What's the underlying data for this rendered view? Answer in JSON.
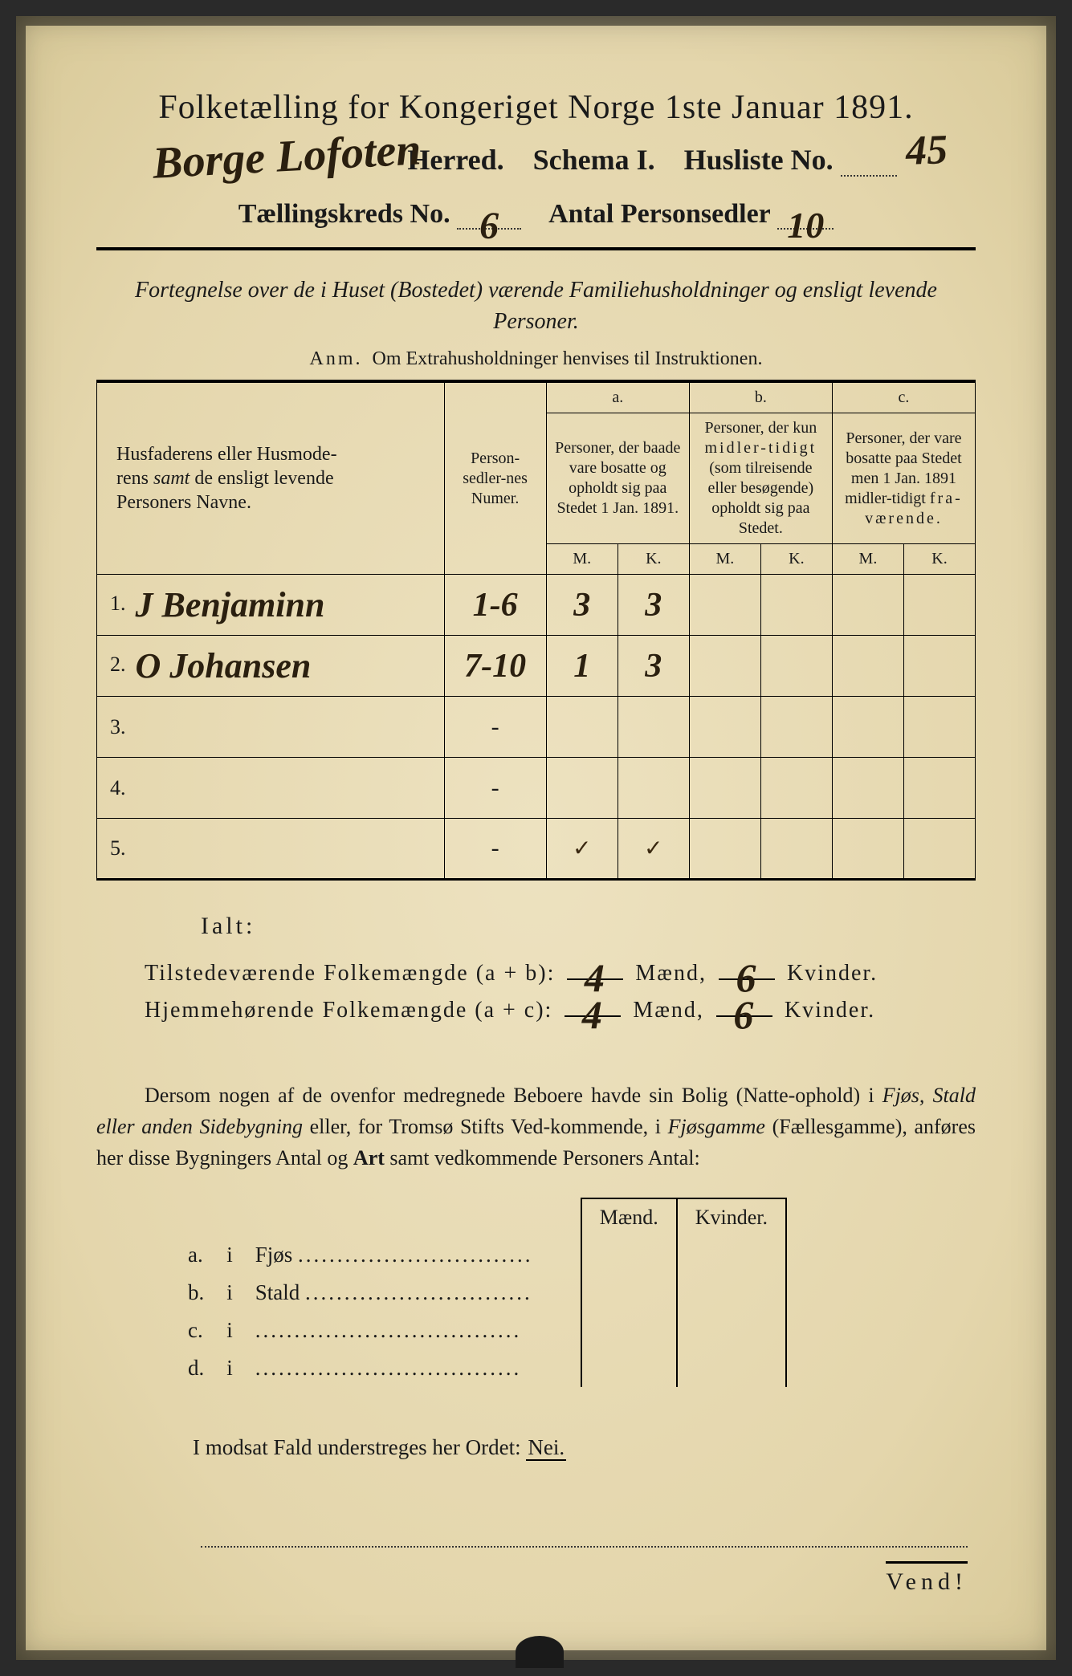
{
  "colors": {
    "paper": "#e8dcb8",
    "ink": "#1a1a1a",
    "handwriting": "#2a1f0f"
  },
  "header": {
    "title": "Folketælling for Kongeriget Norge 1ste Januar 1891.",
    "herred_hw": "Borge Lofoten",
    "herred_label": "Herred.",
    "schema": "Schema I.",
    "husliste_label": "Husliste No.",
    "husliste_hw": "45",
    "kreds_label": "Tællingskreds No.",
    "kreds_hw": "6",
    "antal_label": "Antal Personsedler",
    "antal_hw": "10"
  },
  "subtitle": "Fortegnelse over de i Huset (Bostedet) værende Familiehusholdninger og ensligt levende Personer.",
  "anm_label": "Anm.",
  "anm_text": "Om Extrahusholdninger henvises til Instruktionen.",
  "table": {
    "col_name": "Husfaderens eller Husmoderens samt de ensligt levende Personers Navne.",
    "col_num": "Person-sedler-nes Numer.",
    "a_label": "a.",
    "b_label": "b.",
    "c_label": "c.",
    "a_desc": "Personer, der baade vare bosatte og opholdt sig paa Stedet 1 Jan. 1891.",
    "b_desc": "Personer, der kun midlertidigt (som tilreisende eller besøgende) opholdt sig paa Stedet.",
    "c_desc": "Personer, der vare bosatte paa Stedet men 1 Jan. 1891 midlertidigt fraværende.",
    "m": "M.",
    "k": "K.",
    "rows": [
      {
        "n": "1.",
        "name": "J Benjaminn",
        "num": "1-6",
        "am": "3",
        "ak": "3",
        "bm": "",
        "bk": "",
        "cm": "",
        "ck": ""
      },
      {
        "n": "2.",
        "name": "O Johansen",
        "num": "7-10",
        "am": "1",
        "ak": "3",
        "bm": "",
        "bk": "",
        "cm": "",
        "ck": ""
      },
      {
        "n": "3.",
        "name": "",
        "num": "-",
        "am": "",
        "ak": "",
        "bm": "",
        "bk": "",
        "cm": "",
        "ck": ""
      },
      {
        "n": "4.",
        "name": "",
        "num": "-",
        "am": "",
        "ak": "",
        "bm": "",
        "bk": "",
        "cm": "",
        "ck": ""
      },
      {
        "n": "5.",
        "name": "",
        "num": "-",
        "am": "✓",
        "ak": "✓",
        "bm": "",
        "bk": "",
        "cm": "",
        "ck": ""
      }
    ]
  },
  "ialt": "Ialt:",
  "totals": {
    "line1_label": "Tilstedeværende Folkemængde (a + b):",
    "line2_label": "Hjemmehørende Folkemængde (a + c):",
    "maend": "Mænd,",
    "kvinder": "Kvinder.",
    "l1_m": "4",
    "l1_k": "6",
    "l2_m": "4",
    "l2_k": "6"
  },
  "para": "Dersom nogen af de ovenfor medregnede Beboere havde sin Bolig (Natteophold) i Fjøs, Stald eller anden Sidebygning eller, for Tromsø Stifts Vedkommende, i Fjøsgamme (Fællesgamme), anføres her disse Bygningers Antal og Art samt vedkommende Personers Antal:",
  "buildings": {
    "maend": "Mænd.",
    "kvinder": "Kvinder.",
    "rows": [
      {
        "l": "a.",
        "i": "i",
        "t": "Fjøs"
      },
      {
        "l": "b.",
        "i": "i",
        "t": "Stald"
      },
      {
        "l": "c.",
        "i": "i",
        "t": ""
      },
      {
        "l": "d.",
        "i": "i",
        "t": ""
      }
    ]
  },
  "nei_line": "I modsat Fald understreges her Ordet:",
  "nei": "Nei.",
  "vend": "Vend!"
}
